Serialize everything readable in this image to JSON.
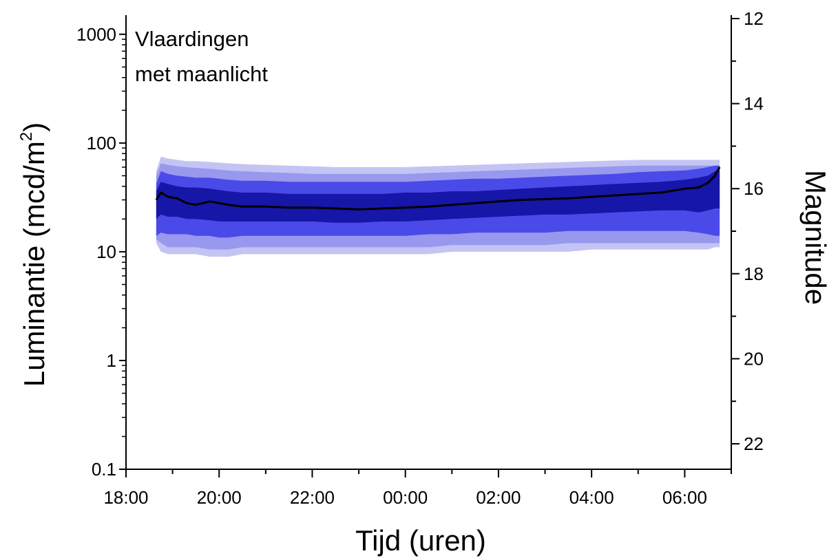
{
  "chart_data": {
    "type": "area",
    "annotation": [
      "Vlaardingen",
      "met maanlicht"
    ],
    "xlabel": "Tijd (uren)",
    "ylabel": "Luminantie (mcd/m2)",
    "ylabel_main": "Luminantie (mcd/m",
    "ylabel_sup": "2",
    "ylabel_end": ")",
    "y2label": "Magnitude",
    "x_ticks": [
      "18:00",
      "20:00",
      "22:00",
      "00:00",
      "02:00",
      "04:00",
      "06:00"
    ],
    "x_unit": "hours since 18:00",
    "xlim": [
      0,
      13
    ],
    "y_scale": "log",
    "ylim": [
      0.1,
      1500
    ],
    "y_ticks": [
      0.1,
      1,
      10,
      100,
      1000
    ],
    "y_tick_labels": [
      "0.1",
      "1",
      "10",
      "100",
      "1000"
    ],
    "y2_ticks": [
      12,
      14,
      16,
      18,
      20,
      22
    ],
    "y2_tick_labels": [
      "12",
      "14",
      "16",
      "18",
      "20",
      "22"
    ],
    "y2_scale": "magnitude (linear, inverted)",
    "colors": {
      "median": "#000000",
      "band_outer": "#c4c4f4",
      "band_2": "#9898ee",
      "band_3": "#4a4ae8",
      "band_inner": "#1616a8"
    },
    "x": [
      0.65,
      0.75,
      0.9,
      1.1,
      1.3,
      1.5,
      1.8,
      2.0,
      2.2,
      2.5,
      3.0,
      3.5,
      4.0,
      4.5,
      5.0,
      5.5,
      6.0,
      6.5,
      7.0,
      7.5,
      8.0,
      8.5,
      9.0,
      9.5,
      10.0,
      10.5,
      11.0,
      11.5,
      12.0,
      12.3,
      12.5,
      12.65,
      12.75
    ],
    "series": [
      {
        "role": "band_outer",
        "low": [
          12,
          10,
          9.5,
          9.5,
          9.5,
          9.5,
          9,
          9,
          9,
          9.5,
          9.5,
          9.5,
          9.5,
          9.5,
          9.5,
          9.5,
          9.5,
          9.5,
          10,
          10,
          10,
          10,
          10,
          10,
          10.5,
          10.5,
          10.5,
          10.5,
          10.5,
          10.5,
          10.5,
          11,
          11
        ],
        "high": [
          55,
          75,
          72,
          70,
          68,
          68,
          67,
          66,
          65,
          64,
          63,
          62,
          61,
          60,
          60,
          60,
          60,
          61,
          62,
          63,
          64,
          65,
          66,
          67,
          68,
          69,
          70,
          70,
          70,
          70,
          70,
          70,
          70
        ]
      },
      {
        "role": "band_2",
        "low": [
          13,
          12,
          11,
          11,
          11,
          11,
          10.5,
          10.5,
          10.5,
          11,
          11,
          11,
          11,
          11,
          11,
          11,
          11,
          11,
          11.5,
          11.5,
          11.5,
          11.5,
          11.5,
          12,
          12,
          12,
          12,
          12,
          12,
          12,
          12,
          12,
          12
        ],
        "high": [
          50,
          65,
          63,
          61,
          60,
          59,
          58,
          57,
          56,
          55,
          54,
          53,
          52,
          52,
          52,
          52,
          52,
          53,
          54,
          55,
          56,
          57,
          58,
          59,
          60,
          61,
          62,
          62,
          62,
          62,
          62,
          62,
          62
        ]
      },
      {
        "role": "band_3",
        "low": [
          14,
          15,
          14.5,
          14.5,
          14.5,
          14,
          14,
          13.5,
          13.5,
          14,
          14,
          14,
          14,
          14,
          14,
          14,
          14,
          14.5,
          14.5,
          15,
          15,
          15,
          15,
          15.5,
          15.5,
          15.5,
          15.5,
          15.5,
          15.5,
          15,
          14.5,
          14,
          14
        ],
        "high": [
          42,
          55,
          52,
          50,
          49,
          48,
          48,
          47,
          46,
          45,
          45,
          44,
          44,
          44,
          44,
          44,
          44,
          45,
          46,
          47,
          47,
          48,
          49,
          50,
          51,
          52,
          54,
          55,
          56,
          58,
          60,
          62,
          62
        ]
      },
      {
        "role": "band_inner",
        "low": [
          20,
          22,
          21,
          21,
          20,
          20,
          19.5,
          19,
          19,
          19,
          19,
          19,
          19,
          18.5,
          18.5,
          19,
          19,
          19.5,
          20,
          20.5,
          21,
          21.5,
          22,
          22,
          22.5,
          23,
          23.5,
          24,
          24,
          23,
          24,
          25,
          25
        ],
        "high": [
          36,
          44,
          42,
          40,
          39,
          39,
          38,
          37,
          36,
          35,
          35,
          34,
          34,
          34,
          34,
          34,
          35,
          35,
          36,
          36,
          37,
          38,
          39,
          40,
          41,
          42,
          43,
          44,
          46,
          48,
          50,
          55,
          58
        ]
      },
      {
        "role": "median",
        "name": "",
        "values": [
          30,
          35,
          32,
          31,
          28,
          27,
          29,
          28,
          27,
          26,
          26,
          25.5,
          25.5,
          25,
          24.5,
          25,
          25.5,
          26,
          27,
          28,
          29,
          30,
          30.5,
          31,
          32,
          33,
          34,
          35,
          38,
          39,
          43,
          50,
          60
        ]
      }
    ]
  }
}
